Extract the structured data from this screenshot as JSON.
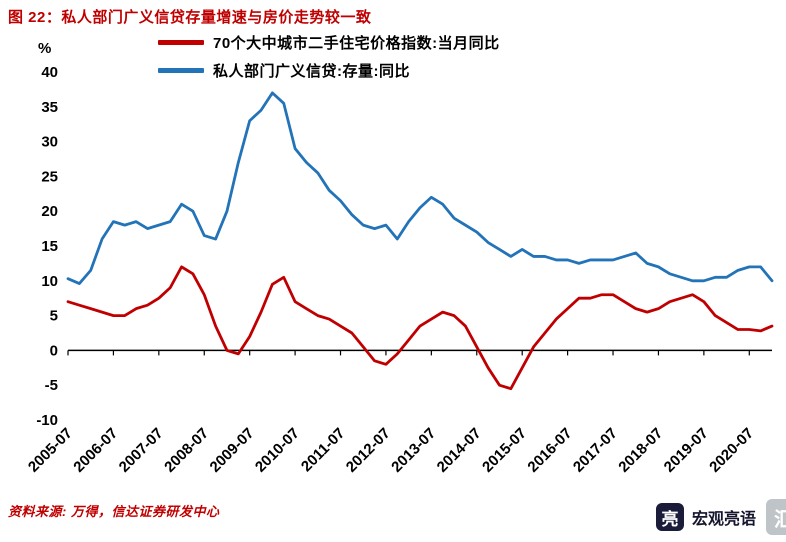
{
  "title": "图  22：私人部门广义信贷存量增速与房价走势较一致",
  "footer": {
    "source": "资料来源: 万得，信达证券研发中心"
  },
  "watermark": {
    "name": "宏观亮语",
    "icon_glyph": "亮",
    "logo_glyph": "汇"
  },
  "colors": {
    "accent_red": "#C00000",
    "line_red": "#C00000",
    "line_blue": "#2273B8",
    "axis_black": "#000000"
  },
  "chart_data": {
    "type": "line",
    "title": "私人部门广义信贷存量增速与房价走势较一致",
    "xlabel": "",
    "ylabel": "%",
    "ylim": [
      -10,
      40
    ],
    "y_ticks": [
      40,
      35,
      30,
      25,
      20,
      15,
      10,
      5,
      0,
      -5,
      -10
    ],
    "grid": false,
    "legend_position": "top",
    "x_tick_labels": [
      "2005-07",
      "2006-07",
      "2007-07",
      "2008-07",
      "2009-07",
      "2010-07",
      "2011-07",
      "2012-07",
      "2013-07",
      "2014-07",
      "2015-07",
      "2016-07",
      "2017-07",
      "2018-07",
      "2019-07",
      "2020-07"
    ],
    "x": [
      "2005-07",
      "2005-10",
      "2006-01",
      "2006-04",
      "2006-07",
      "2006-10",
      "2007-01",
      "2007-04",
      "2007-07",
      "2007-10",
      "2008-01",
      "2008-04",
      "2008-07",
      "2008-10",
      "2009-01",
      "2009-04",
      "2009-07",
      "2009-10",
      "2010-01",
      "2010-04",
      "2010-07",
      "2010-10",
      "2011-01",
      "2011-04",
      "2011-07",
      "2011-10",
      "2012-01",
      "2012-04",
      "2012-07",
      "2012-10",
      "2013-01",
      "2013-04",
      "2013-07",
      "2013-10",
      "2014-01",
      "2014-04",
      "2014-07",
      "2014-10",
      "2015-01",
      "2015-04",
      "2015-07",
      "2015-10",
      "2016-01",
      "2016-04",
      "2016-07",
      "2016-10",
      "2017-01",
      "2017-04",
      "2017-07",
      "2017-10",
      "2018-01",
      "2018-04",
      "2018-07",
      "2018-10",
      "2019-01",
      "2019-04",
      "2019-07",
      "2019-10",
      "2020-01",
      "2020-04",
      "2020-07",
      "2020-10",
      "2021-01"
    ],
    "series": [
      {
        "name": "70个大中城市二手住宅价格指数:当月同比",
        "color": "#C00000",
        "values": [
          7.0,
          6.5,
          6.0,
          5.5,
          5.0,
          5.0,
          6.0,
          6.5,
          7.5,
          9.0,
          12.0,
          11.0,
          8.0,
          3.5,
          0.0,
          -0.5,
          2.0,
          5.5,
          9.5,
          10.5,
          7.0,
          6.0,
          5.0,
          4.5,
          3.5,
          2.5,
          0.5,
          -1.5,
          -2.0,
          -0.5,
          1.5,
          3.5,
          4.5,
          5.5,
          5.0,
          3.5,
          0.5,
          -2.5,
          -5.0,
          -5.5,
          -2.5,
          0.5,
          2.5,
          4.5,
          6.0,
          7.5,
          7.5,
          8.0,
          8.0,
          7.0,
          6.0,
          5.5,
          6.0,
          7.0,
          7.5,
          8.0,
          7.0,
          5.0,
          4.0,
          3.0,
          3.0,
          2.8,
          3.5
        ]
      },
      {
        "name": "私人部门广义信贷:存量:同比",
        "color": "#2273B8",
        "values": [
          10.3,
          9.6,
          11.5,
          16.0,
          18.5,
          18.0,
          18.5,
          17.5,
          18.0,
          18.5,
          21.0,
          20.0,
          16.5,
          16.0,
          20.0,
          27.0,
          33.0,
          34.5,
          37.0,
          35.5,
          29.0,
          27.0,
          25.5,
          23.0,
          21.5,
          19.5,
          18.0,
          17.5,
          18.0,
          16.0,
          18.5,
          20.5,
          22.0,
          21.0,
          19.0,
          18.0,
          17.0,
          15.5,
          14.5,
          13.5,
          14.5,
          13.5,
          13.5,
          13.0,
          13.0,
          12.5,
          13.0,
          13.0,
          13.0,
          13.5,
          14.0,
          12.5,
          12.0,
          11.0,
          10.5,
          10.0,
          10.0,
          10.5,
          10.5,
          11.5,
          12.0,
          12.0,
          10.0
        ]
      }
    ]
  }
}
